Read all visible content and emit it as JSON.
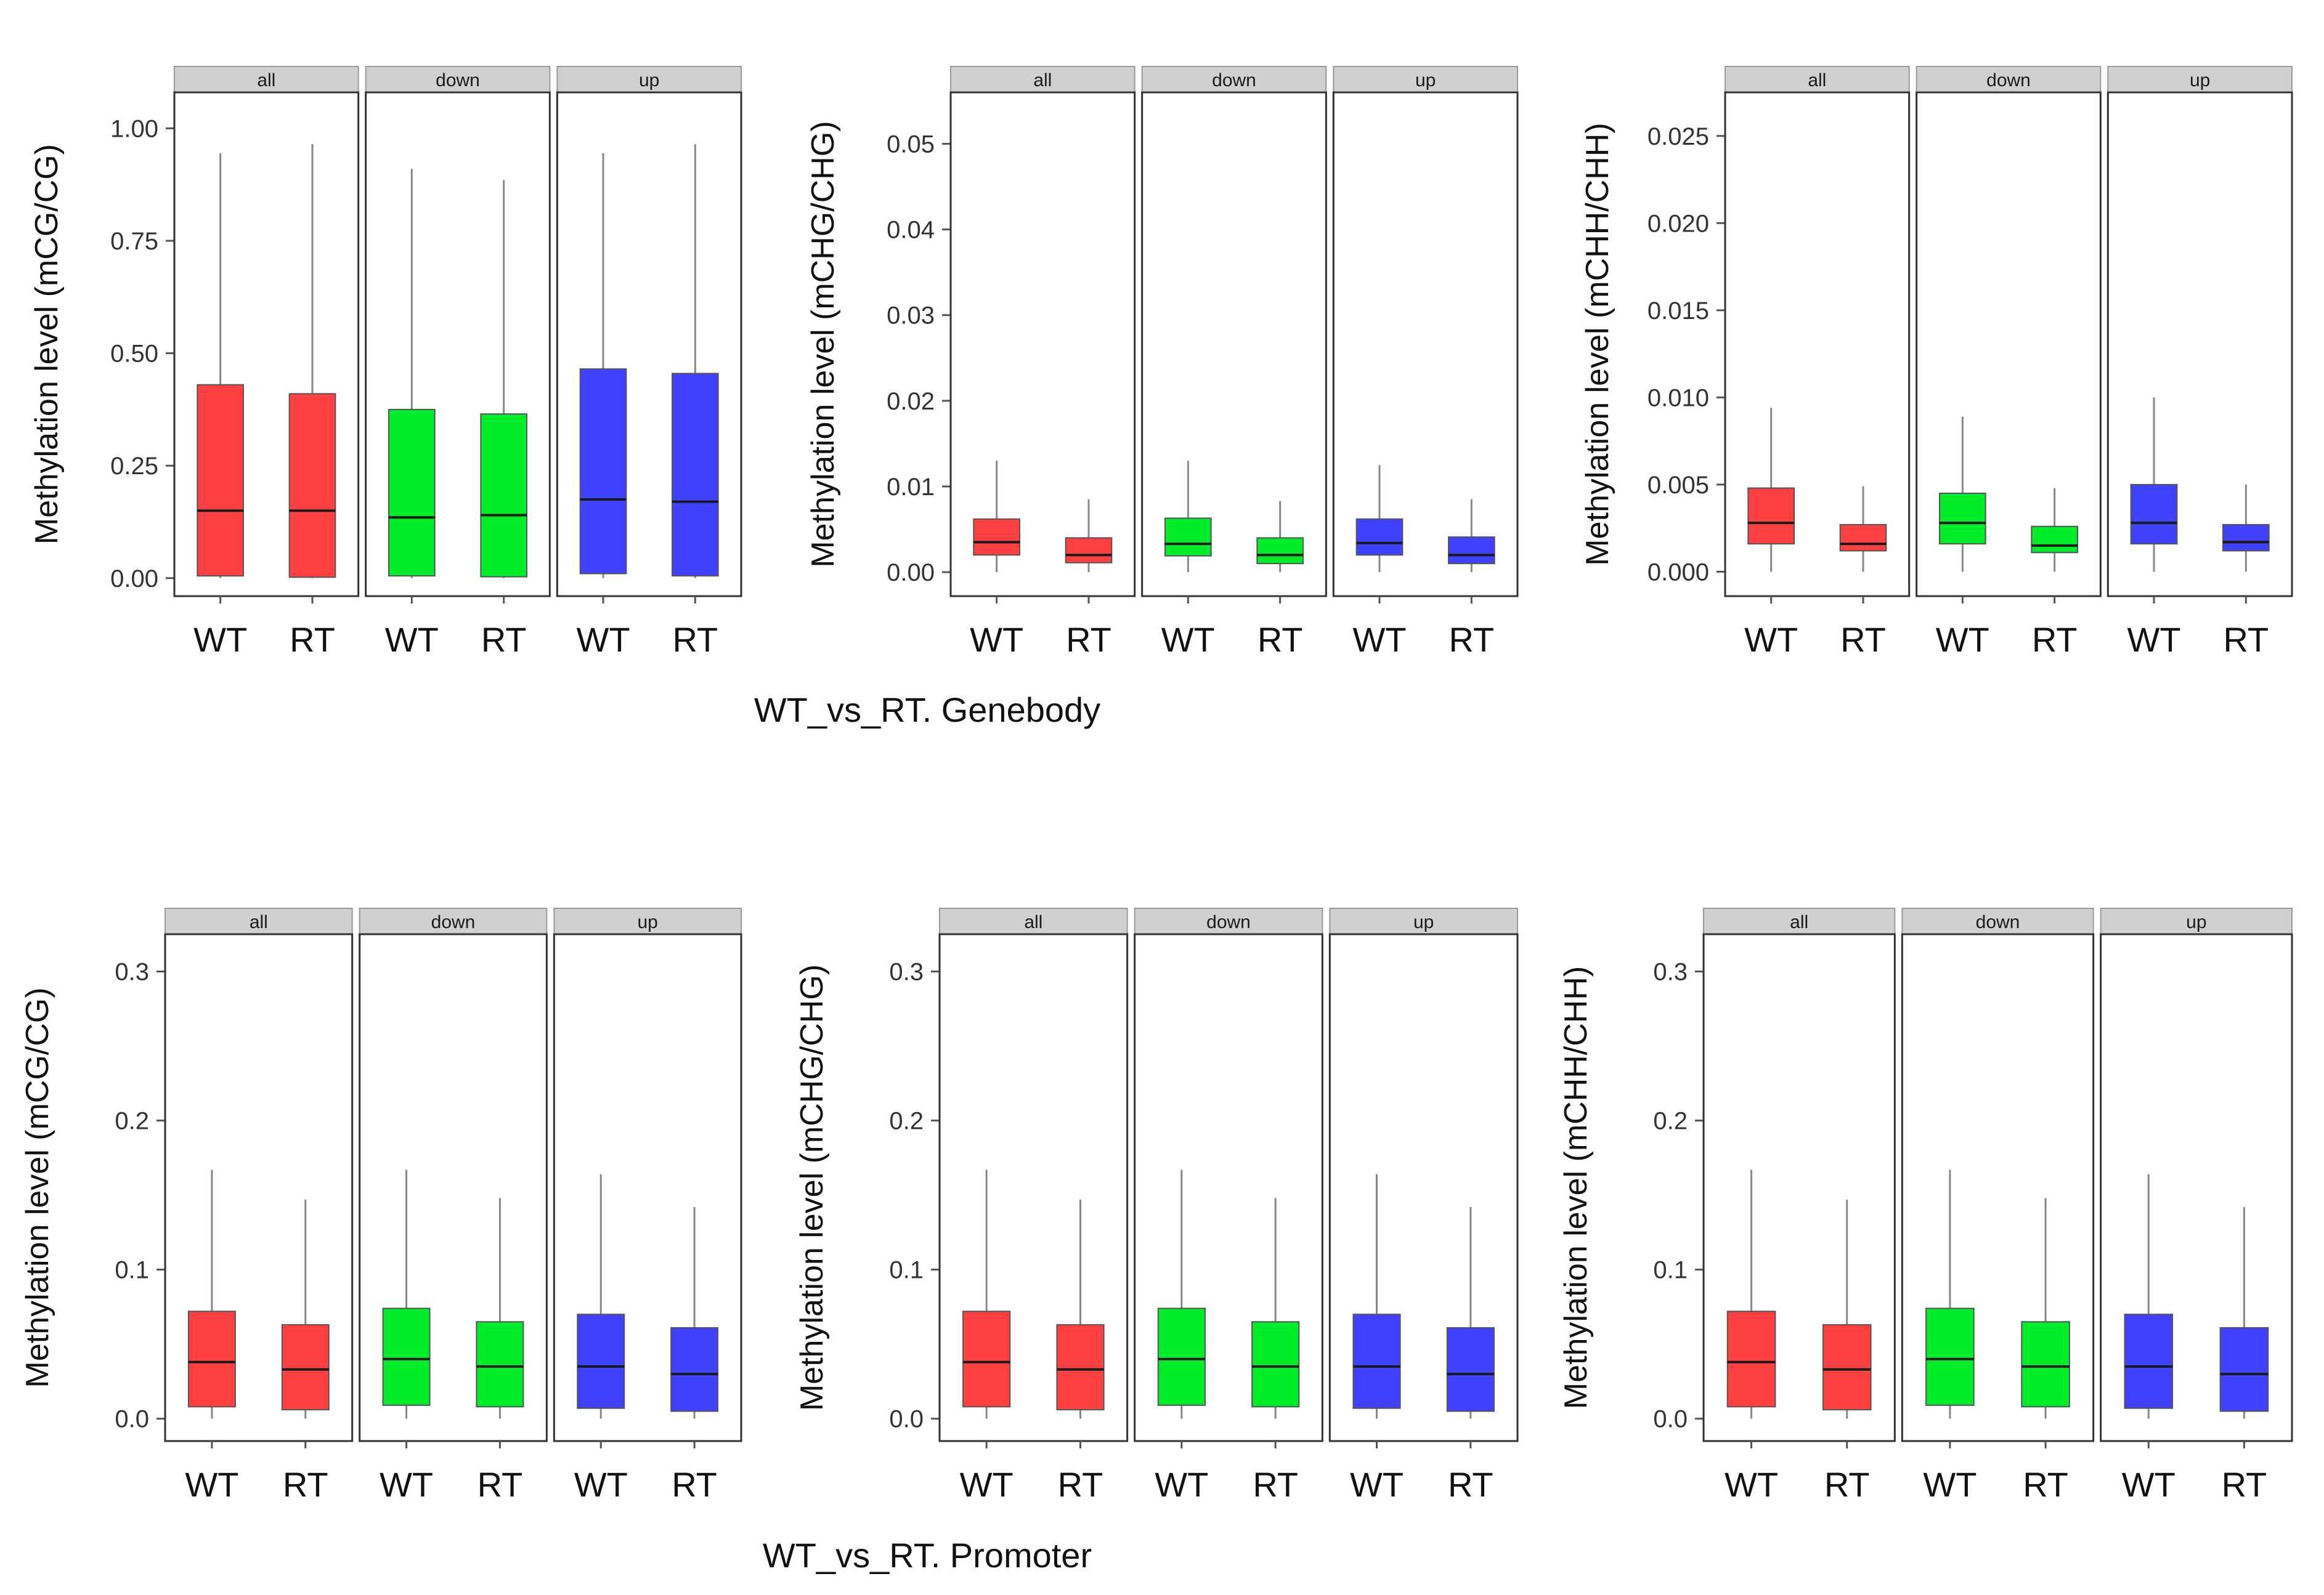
{
  "colors": {
    "all": "#ff4040",
    "down": "#00ee2a",
    "up": "#4040ff",
    "strip_bg": "#d0d0d0",
    "whisker": "#888888",
    "median": "#1a1a1a",
    "frame": "#333333"
  },
  "chart_data": [
    {
      "type": "box",
      "group_title": "WT_vs_RT. Genebody",
      "ylabel": "Methylation level (mCG/CG)",
      "ylim": [
        -0.04,
        1.08
      ],
      "yticks": [
        0.0,
        0.25,
        0.5,
        0.75,
        1.0
      ],
      "ytick_labels": [
        "0.00",
        "0.25",
        "0.50",
        "0.75",
        "1.00"
      ],
      "facets": [
        {
          "label": "all",
          "color_key": "all",
          "boxes": [
            {
              "category": "WT",
              "min": 0.0,
              "q1": 0.005,
              "median": 0.15,
              "q3": 0.43,
              "max": 0.945
            },
            {
              "category": "RT",
              "min": 0.0,
              "q1": 0.002,
              "median": 0.15,
              "q3": 0.41,
              "max": 0.965
            }
          ]
        },
        {
          "label": "down",
          "color_key": "down",
          "boxes": [
            {
              "category": "WT",
              "min": 0.0,
              "q1": 0.005,
              "median": 0.135,
              "q3": 0.375,
              "max": 0.91
            },
            {
              "category": "RT",
              "min": 0.0,
              "q1": 0.003,
              "median": 0.14,
              "q3": 0.365,
              "max": 0.885
            }
          ]
        },
        {
          "label": "up",
          "color_key": "up",
          "boxes": [
            {
              "category": "WT",
              "min": 0.0,
              "q1": 0.01,
              "median": 0.175,
              "q3": 0.465,
              "max": 0.945
            },
            {
              "category": "RT",
              "min": 0.0,
              "q1": 0.005,
              "median": 0.17,
              "q3": 0.455,
              "max": 0.965
            }
          ]
        }
      ]
    },
    {
      "type": "box",
      "group_title": "WT_vs_RT. Genebody",
      "ylabel": "Methylation level (mCHG/CHG)",
      "ylim": [
        -0.0028,
        0.056
      ],
      "yticks": [
        0.0,
        0.01,
        0.02,
        0.03,
        0.04,
        0.05
      ],
      "ytick_labels": [
        "0.00",
        "0.01",
        "0.02",
        "0.03",
        "0.04",
        "0.05"
      ],
      "facets": [
        {
          "label": "all",
          "color_key": "all",
          "boxes": [
            {
              "category": "WT",
              "min": 0.0,
              "q1": 0.002,
              "median": 0.0035,
              "q3": 0.0062,
              "max": 0.013
            },
            {
              "category": "RT",
              "min": 0.0,
              "q1": 0.0011,
              "median": 0.002,
              "q3": 0.004,
              "max": 0.0085
            }
          ]
        },
        {
          "label": "down",
          "color_key": "down",
          "boxes": [
            {
              "category": "WT",
              "min": 0.0,
              "q1": 0.0019,
              "median": 0.0033,
              "q3": 0.0063,
              "max": 0.013
            },
            {
              "category": "RT",
              "min": 0.0,
              "q1": 0.001,
              "median": 0.002,
              "q3": 0.004,
              "max": 0.0083
            }
          ]
        },
        {
          "label": "up",
          "color_key": "up",
          "boxes": [
            {
              "category": "WT",
              "min": 0.0,
              "q1": 0.002,
              "median": 0.0034,
              "q3": 0.0062,
              "max": 0.0125
            },
            {
              "category": "RT",
              "min": 0.0,
              "q1": 0.001,
              "median": 0.002,
              "q3": 0.0041,
              "max": 0.0085
            }
          ]
        }
      ]
    },
    {
      "type": "box",
      "group_title": "WT_vs_RT. Genebody",
      "ylabel": "Methylation level (mCHH/CHH)",
      "ylim": [
        -0.0014,
        0.0275
      ],
      "yticks": [
        0.0,
        0.005,
        0.01,
        0.015,
        0.02,
        0.025
      ],
      "ytick_labels": [
        "0.000",
        "0.005",
        "0.010",
        "0.015",
        "0.020",
        "0.025"
      ],
      "facets": [
        {
          "label": "all",
          "color_key": "all",
          "boxes": [
            {
              "category": "WT",
              "min": 0.0,
              "q1": 0.0016,
              "median": 0.0028,
              "q3": 0.0048,
              "max": 0.0094
            },
            {
              "category": "RT",
              "min": 0.0,
              "q1": 0.0012,
              "median": 0.0016,
              "q3": 0.0027,
              "max": 0.0049
            }
          ]
        },
        {
          "label": "down",
          "color_key": "down",
          "boxes": [
            {
              "category": "WT",
              "min": 0.0,
              "q1": 0.0016,
              "median": 0.0028,
              "q3": 0.0045,
              "max": 0.0089
            },
            {
              "category": "RT",
              "min": 0.0,
              "q1": 0.0011,
              "median": 0.0015,
              "q3": 0.0026,
              "max": 0.0048
            }
          ]
        },
        {
          "label": "up",
          "color_key": "up",
          "boxes": [
            {
              "category": "WT",
              "min": 0.0,
              "q1": 0.0016,
              "median": 0.0028,
              "q3": 0.005,
              "max": 0.01
            },
            {
              "category": "RT",
              "min": 0.0,
              "q1": 0.0012,
              "median": 0.0017,
              "q3": 0.0027,
              "max": 0.005
            }
          ]
        }
      ]
    },
    {
      "type": "box",
      "group_title": "WT_vs_RT. Promoter",
      "ylabel": "Methylation level (mCG/CG)",
      "ylim": [
        -0.015,
        0.325
      ],
      "yticks": [
        0.0,
        0.1,
        0.2,
        0.3
      ],
      "ytick_labels": [
        "0.0",
        "0.1",
        "0.2",
        "0.3"
      ],
      "facets": [
        {
          "label": "all",
          "color_key": "all",
          "boxes": [
            {
              "category": "WT",
              "min": 0.0,
              "q1": 0.008,
              "median": 0.038,
              "q3": 0.072,
              "max": 0.167
            },
            {
              "category": "RT",
              "min": 0.0,
              "q1": 0.006,
              "median": 0.033,
              "q3": 0.063,
              "max": 0.147
            }
          ]
        },
        {
          "label": "down",
          "color_key": "down",
          "boxes": [
            {
              "category": "WT",
              "min": 0.0,
              "q1": 0.009,
              "median": 0.04,
              "q3": 0.074,
              "max": 0.167
            },
            {
              "category": "RT",
              "min": 0.0,
              "q1": 0.008,
              "median": 0.035,
              "q3": 0.065,
              "max": 0.148
            }
          ]
        },
        {
          "label": "up",
          "color_key": "up",
          "boxes": [
            {
              "category": "WT",
              "min": 0.0,
              "q1": 0.007,
              "median": 0.035,
              "q3": 0.07,
              "max": 0.164
            },
            {
              "category": "RT",
              "min": 0.0,
              "q1": 0.005,
              "median": 0.03,
              "q3": 0.061,
              "max": 0.142
            }
          ]
        }
      ]
    },
    {
      "type": "box",
      "group_title": "WT_vs_RT. Promoter",
      "ylabel": "Methylation level (mCHG/CHG)",
      "ylim": [
        -0.015,
        0.325
      ],
      "yticks": [
        0.0,
        0.1,
        0.2,
        0.3
      ],
      "ytick_labels": [
        "0.0",
        "0.1",
        "0.2",
        "0.3"
      ],
      "facets": [
        {
          "label": "all",
          "color_key": "all",
          "boxes": [
            {
              "category": "WT",
              "min": 0.0,
              "q1": 0.008,
              "median": 0.038,
              "q3": 0.072,
              "max": 0.167
            },
            {
              "category": "RT",
              "min": 0.0,
              "q1": 0.006,
              "median": 0.033,
              "q3": 0.063,
              "max": 0.147
            }
          ]
        },
        {
          "label": "down",
          "color_key": "down",
          "boxes": [
            {
              "category": "WT",
              "min": 0.0,
              "q1": 0.009,
              "median": 0.04,
              "q3": 0.074,
              "max": 0.167
            },
            {
              "category": "RT",
              "min": 0.0,
              "q1": 0.008,
              "median": 0.035,
              "q3": 0.065,
              "max": 0.148
            }
          ]
        },
        {
          "label": "up",
          "color_key": "up",
          "boxes": [
            {
              "category": "WT",
              "min": 0.0,
              "q1": 0.007,
              "median": 0.035,
              "q3": 0.07,
              "max": 0.164
            },
            {
              "category": "RT",
              "min": 0.0,
              "q1": 0.005,
              "median": 0.03,
              "q3": 0.061,
              "max": 0.142
            }
          ]
        }
      ]
    },
    {
      "type": "box",
      "group_title": "WT_vs_RT. Promoter",
      "ylabel": "Methylation level (mCHH/CHH)",
      "ylim": [
        -0.015,
        0.325
      ],
      "yticks": [
        0.0,
        0.1,
        0.2,
        0.3
      ],
      "ytick_labels": [
        "0.0",
        "0.1",
        "0.2",
        "0.3"
      ],
      "facets": [
        {
          "label": "all",
          "color_key": "all",
          "boxes": [
            {
              "category": "WT",
              "min": 0.0,
              "q1": 0.008,
              "median": 0.038,
              "q3": 0.072,
              "max": 0.167
            },
            {
              "category": "RT",
              "min": 0.0,
              "q1": 0.006,
              "median": 0.033,
              "q3": 0.063,
              "max": 0.147
            }
          ]
        },
        {
          "label": "down",
          "color_key": "down",
          "boxes": [
            {
              "category": "WT",
              "min": 0.0,
              "q1": 0.009,
              "median": 0.04,
              "q3": 0.074,
              "max": 0.167
            },
            {
              "category": "RT",
              "min": 0.0,
              "q1": 0.008,
              "median": 0.035,
              "q3": 0.065,
              "max": 0.148
            }
          ]
        },
        {
          "label": "up",
          "color_key": "up",
          "boxes": [
            {
              "category": "WT",
              "min": 0.0,
              "q1": 0.007,
              "median": 0.035,
              "q3": 0.07,
              "max": 0.164
            },
            {
              "category": "RT",
              "min": 0.0,
              "q1": 0.005,
              "median": 0.03,
              "q3": 0.061,
              "max": 0.142
            }
          ]
        }
      ]
    }
  ],
  "group_titles": {
    "genebody": "WT_vs_RT. Genebody",
    "promoter": "WT_vs_RT. Promoter"
  }
}
